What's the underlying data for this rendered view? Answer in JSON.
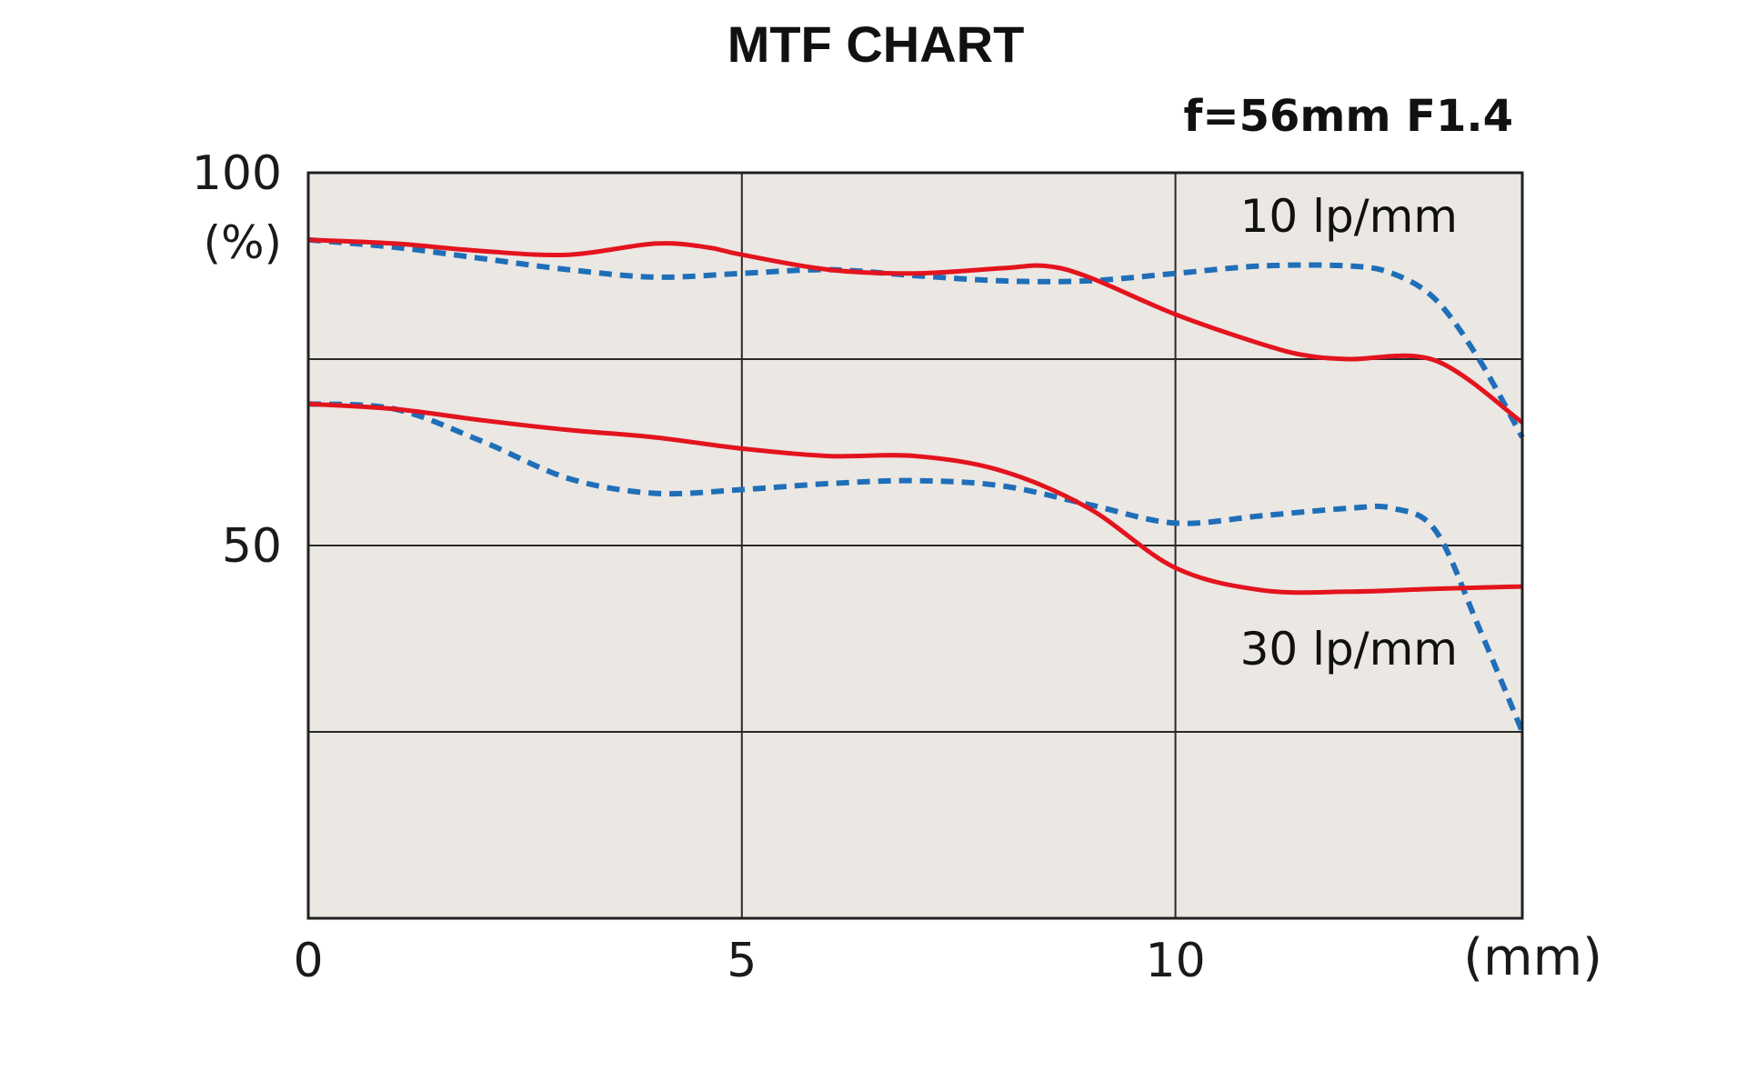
{
  "chart_data": {
    "type": "line",
    "title": "MTF CHART",
    "subtitle": "f=56mm F1.4",
    "xlabel": "(mm)",
    "ylabel": "(%)",
    "xlim": [
      0,
      14
    ],
    "ylim": [
      0,
      100
    ],
    "x_ticks": [
      "0",
      "5",
      "10"
    ],
    "x_tick_values": [
      0,
      5,
      10
    ],
    "y_ticks": [
      "100",
      "50"
    ],
    "y_tick_values": [
      100,
      50
    ],
    "grid_x": [
      5,
      10
    ],
    "grid_y": [
      25,
      50,
      75
    ],
    "grid": true,
    "plot_background": "#ebe7e3",
    "annotations": [
      {
        "text": "10 lp/mm",
        "x": 12.0,
        "y": 94
      },
      {
        "text": "30 lp/mm",
        "x": 12.0,
        "y": 36
      }
    ],
    "series": [
      {
        "style": "solid",
        "color": "#e3141e",
        "group": "10 lp/mm",
        "x": [
          0,
          1,
          2,
          3,
          4,
          4.6,
          5,
          6,
          7,
          8,
          8.5,
          9,
          10,
          11,
          11.5,
          12,
          13,
          14
        ],
        "y": [
          91,
          90.5,
          89.5,
          89,
          90.5,
          90,
          89,
          87,
          86.5,
          87.2,
          87.5,
          86,
          81,
          77,
          75.5,
          75,
          74.8,
          66.5
        ]
      },
      {
        "style": "dashed",
        "color": "#1f6fb8",
        "group": "10 lp/mm",
        "x": [
          0,
          1,
          2,
          3,
          4,
          5,
          6,
          7,
          8,
          9,
          10,
          11,
          12,
          12.5,
          13,
          13.5,
          14
        ],
        "y": [
          91,
          90,
          88.5,
          87,
          86,
          86.5,
          87,
          86.2,
          85.5,
          85.5,
          86.5,
          87.5,
          87.5,
          86.5,
          83,
          75,
          64.5
        ]
      },
      {
        "style": "solid",
        "color": "#e3141e",
        "group": "30 lp/mm",
        "x": [
          0,
          1,
          2,
          3,
          4,
          5,
          6,
          7,
          8,
          9,
          10,
          11,
          12,
          13,
          14
        ],
        "y": [
          69,
          68.3,
          66.8,
          65.5,
          64.5,
          63,
          62,
          62,
          60,
          55,
          47,
          44,
          43.8,
          44.2,
          44.5
        ]
      },
      {
        "style": "dashed",
        "color": "#1f6fb8",
        "group": "30 lp/mm",
        "x": [
          0,
          1,
          2,
          3,
          4,
          5,
          6,
          7,
          8,
          9,
          10,
          11,
          12,
          12.5,
          13,
          13.5,
          14
        ],
        "y": [
          69,
          68.3,
          64,
          59,
          57,
          57.5,
          58.3,
          58.7,
          58,
          55.5,
          53,
          54,
          55,
          55,
          52,
          39,
          25
        ]
      }
    ]
  }
}
